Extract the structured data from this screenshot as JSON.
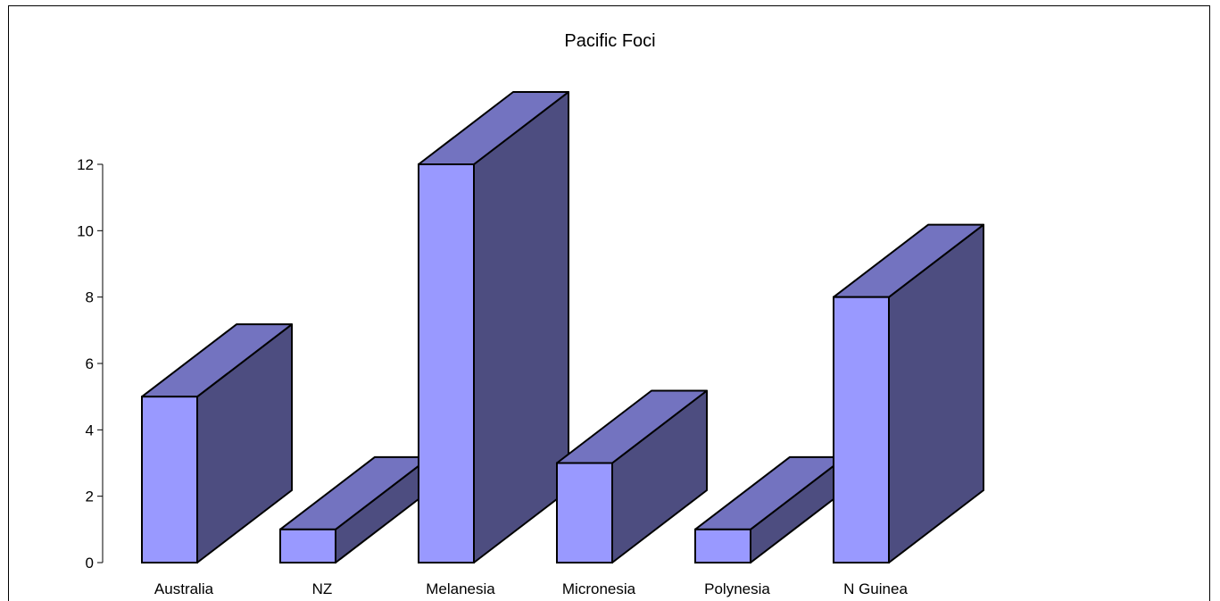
{
  "chart_data": {
    "type": "bar",
    "title": "Pacific Foci",
    "xlabel": "",
    "ylabel": "",
    "categories": [
      "Australia",
      "NZ",
      "Melanesia",
      "Micronesia",
      "Polynesia",
      "N Guinea"
    ],
    "values": [
      5,
      1,
      12,
      3,
      1,
      8
    ],
    "ylim": [
      0,
      12
    ],
    "yticks": [
      0,
      2,
      4,
      6,
      8,
      10,
      12
    ],
    "three_d": true,
    "grid": false,
    "legend": "none",
    "colors": {
      "front": "#9999FF",
      "top": "#7373C0",
      "side": "#4D4D80",
      "stroke": "#000000"
    }
  }
}
